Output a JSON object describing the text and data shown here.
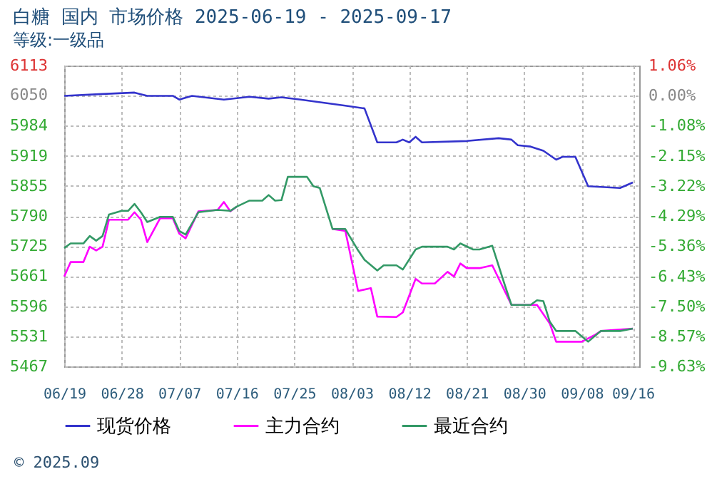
{
  "chart_data": {
    "type": "line",
    "title": "白糖  国内  市场价格  2025-06-19 - 2025-09-17",
    "subtitle": "等级:一级品",
    "annotations": [
      "© 2025.09"
    ],
    "xlim": [
      "2025-06-19",
      "2025-09-17"
    ],
    "xticks": [
      {
        "value": "2025-06-19",
        "label": "06/19"
      },
      {
        "value": "2025-06-28",
        "label": "06/28"
      },
      {
        "value": "2025-07-07",
        "label": "07/07"
      },
      {
        "value": "2025-07-16",
        "label": "07/16"
      },
      {
        "value": "2025-07-25",
        "label": "07/25"
      },
      {
        "value": "2025-08-03",
        "label": "08/03"
      },
      {
        "value": "2025-08-12",
        "label": "08/12"
      },
      {
        "value": "2025-08-21",
        "label": "08/21"
      },
      {
        "value": "2025-08-30",
        "label": "08/30"
      },
      {
        "value": "2025-09-08",
        "label": "09/08"
      },
      {
        "value": "2025-09-16",
        "label": "09/16"
      }
    ],
    "ylim": [
      5467,
      6113
    ],
    "yticks": [
      5467,
      5531,
      5596,
      5661,
      5725,
      5790,
      5855,
      5919,
      5984,
      6050,
      6113
    ],
    "y2lim": [
      -9.63,
      1.06
    ],
    "y2ticks": [
      {
        "value": -9.63,
        "label": "-9.63%"
      },
      {
        "value": -8.57,
        "label": "-8.57%"
      },
      {
        "value": -7.5,
        "label": "-7.50%"
      },
      {
        "value": -6.43,
        "label": "-6.43%"
      },
      {
        "value": -5.36,
        "label": "-5.36%"
      },
      {
        "value": -4.29,
        "label": "-4.29%"
      },
      {
        "value": -3.22,
        "label": "-3.22%"
      },
      {
        "value": -2.15,
        "label": "-2.15%"
      },
      {
        "value": -1.08,
        "label": "-1.08%"
      },
      {
        "value": 0,
        "label": "0.00%"
      },
      {
        "value": 1.06,
        "label": "1.06%"
      }
    ],
    "grid": true,
    "legend": "bottom",
    "line_style": "solid",
    "marker": "none",
    "series": [
      {
        "name": "现货价格",
        "color": "#3333cc",
        "x": [
          "2025-06-19",
          "2025-06-25",
          "2025-06-30",
          "2025-07-02",
          "2025-07-06",
          "2025-07-07",
          "2025-07-09",
          "2025-07-14",
          "2025-07-18",
          "2025-07-21",
          "2025-07-23",
          "2025-07-26",
          "2025-08-02",
          "2025-08-05",
          "2025-08-07",
          "2025-08-10",
          "2025-08-11",
          "2025-08-12",
          "2025-08-13",
          "2025-08-14",
          "2025-08-21",
          "2025-08-26",
          "2025-08-28",
          "2025-08-29",
          "2025-08-31",
          "2025-09-02",
          "2025-09-04",
          "2025-09-05",
          "2025-09-07",
          "2025-09-09",
          "2025-09-14",
          "2025-09-16"
        ],
        "values": [
          6048,
          6052,
          6055,
          6048,
          6048,
          6040,
          6048,
          6040,
          6046,
          6042,
          6045,
          6040,
          6027,
          6021,
          5948,
          5948,
          5954,
          5948,
          5960,
          5948,
          5951,
          5957,
          5954,
          5942,
          5939,
          5930,
          5911,
          5917,
          5917,
          5854,
          5850,
          5862
        ]
      },
      {
        "name": "主力合约",
        "color": "#ff00ff",
        "x": [
          "2025-06-19",
          "2025-06-20",
          "2025-06-22",
          "2025-06-23",
          "2025-06-24",
          "2025-06-25",
          "2025-06-26",
          "2025-06-29",
          "2025-06-30",
          "2025-07-01",
          "2025-07-02",
          "2025-07-04",
          "2025-07-06",
          "2025-07-07",
          "2025-07-08",
          "2025-07-10",
          "2025-07-13",
          "2025-07-14",
          "2025-07-15",
          "2025-07-16",
          "2025-07-18",
          "2025-07-20",
          "2025-07-21",
          "2025-07-22",
          "2025-07-23",
          "2025-07-24",
          "2025-07-27",
          "2025-07-28",
          "2025-07-29",
          "2025-07-31",
          "2025-08-02",
          "2025-08-04",
          "2025-08-06",
          "2025-08-07",
          "2025-08-10",
          "2025-08-11",
          "2025-08-13",
          "2025-08-14",
          "2025-08-16",
          "2025-08-18",
          "2025-08-19",
          "2025-08-20",
          "2025-08-21",
          "2025-08-23",
          "2025-08-25",
          "2025-08-28",
          "2025-09-01",
          "2025-09-03",
          "2025-09-04",
          "2025-09-08",
          "2025-09-10",
          "2025-09-11",
          "2025-09-16"
        ],
        "values": [
          5660,
          5691,
          5691,
          5724,
          5716,
          5724,
          5782,
          5782,
          5798,
          5782,
          5734,
          5785,
          5785,
          5752,
          5742,
          5800,
          5803,
          5820,
          5800,
          5810,
          null,
          null,
          null,
          null,
          null,
          null,
          null,
          null,
          null,
          5762,
          5758,
          5629,
          5635,
          5574,
          5573,
          5583,
          5655,
          5645,
          5645,
          5670,
          5660,
          5688,
          5678,
          5678,
          5684,
          5599,
          5599,
          5559,
          5520,
          5520,
          5534,
          5543,
          5548
        ]
      },
      {
        "name": "最近合约",
        "color": "#339966",
        "x": [
          "2025-06-19",
          "2025-06-20",
          "2025-06-22",
          "2025-06-23",
          "2025-06-24",
          "2025-06-25",
          "2025-06-26",
          "2025-06-28",
          "2025-06-29",
          "2025-06-30",
          "2025-07-01",
          "2025-07-02",
          "2025-07-04",
          "2025-07-06",
          "2025-07-07",
          "2025-07-08",
          "2025-07-10",
          "2025-07-13",
          "2025-07-15",
          "2025-07-16",
          "2025-07-18",
          "2025-07-20",
          "2025-07-21",
          "2025-07-22",
          "2025-07-23",
          "2025-07-24",
          "2025-07-27",
          "2025-07-28",
          "2025-07-29",
          "2025-07-31",
          "2025-08-02",
          "2025-08-04",
          "2025-08-05",
          "2025-08-07",
          "2025-08-08",
          "2025-08-10",
          "2025-08-11",
          "2025-08-13",
          "2025-08-14",
          "2025-08-18",
          "2025-08-19",
          "2025-08-20",
          "2025-08-22",
          "2025-08-23",
          "2025-08-25",
          "2025-08-27",
          "2025-08-28",
          "2025-08-31",
          "2025-09-01",
          "2025-09-02",
          "2025-09-03",
          "2025-09-04",
          "2025-09-07",
          "2025-09-09",
          "2025-09-11",
          "2025-09-14",
          "2025-09-16"
        ],
        "values": [
          5721,
          5731,
          5731,
          5747,
          5737,
          5747,
          5793,
          5801,
          5801,
          5816,
          5798,
          5777,
          5788,
          5788,
          5758,
          5750,
          5798,
          5803,
          5801,
          5810,
          5823,
          5823,
          5835,
          5823,
          5824,
          5874,
          5874,
          5854,
          5850,
          5762,
          5762,
          5716,
          5696,
          5673,
          5684,
          5684,
          5675,
          5718,
          5724,
          5724,
          5718,
          5731,
          5718,
          5718,
          5726,
          5640,
          5599,
          5599,
          5609,
          5607,
          5563,
          5543,
          5543,
          5520,
          5543,
          5543,
          5548
        ]
      }
    ]
  }
}
